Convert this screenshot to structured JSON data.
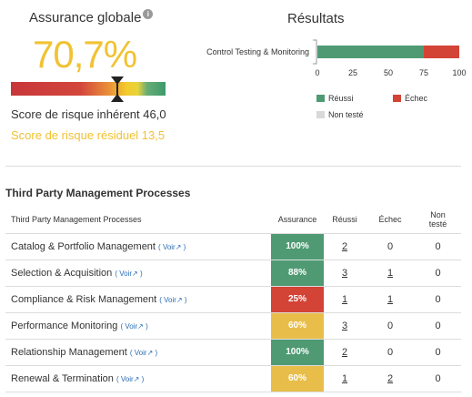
{
  "global": {
    "title": "Assurance globale",
    "info_icon": "i",
    "value": "70,7%",
    "value_color": "#f1c232",
    "gauge_position": 0.69,
    "inherent_label": "Score de risque inhérent 46,0",
    "residual_label": "Score de risque résiduel 13,5"
  },
  "results": {
    "title": "Résultats",
    "legend": [
      {
        "label": "Réussi",
        "color": "#4f9a73"
      },
      {
        "label": "Échec",
        "color": "#d34336"
      },
      {
        "label": "Non testé",
        "color": "#d9d9d9"
      }
    ]
  },
  "chart_data": {
    "type": "bar",
    "orientation": "horizontal",
    "stacked": true,
    "categories": [
      "Control Testing & Monitoring"
    ],
    "series": [
      {
        "name": "Réussi",
        "values": [
          75
        ],
        "color": "#4f9a73"
      },
      {
        "name": "Échec",
        "values": [
          25
        ],
        "color": "#d34336"
      },
      {
        "name": "Non testé",
        "values": [
          0
        ],
        "color": "#d9d9d9"
      }
    ],
    "xlim": [
      0,
      100
    ],
    "xticks": [
      "0",
      "25",
      "50",
      "75",
      "100"
    ],
    "grid": false,
    "legend_position": "bottom"
  },
  "table": {
    "title": "Third Party Management Processes",
    "headers": {
      "name": "Third Party Management Processes",
      "assurance": "Assurance",
      "passed": "Réussi",
      "failed": "Échec",
      "not_tested_1": "Non",
      "not_tested_2": "testé"
    },
    "voir_label": "Voir",
    "voir_icon": "↗",
    "rows": [
      {
        "name": "Catalog & Portfolio Management",
        "assurance": "100%",
        "color": "#4f9a73",
        "passed": "2",
        "failed": "0",
        "not_tested": "0"
      },
      {
        "name": "Selection & Acquisition",
        "assurance": "88%",
        "color": "#4f9a73",
        "passed": "3",
        "failed": "1",
        "not_tested": "0"
      },
      {
        "name": "Compliance & Risk Management",
        "assurance": "25%",
        "color": "#d34336",
        "passed": "1",
        "failed": "1",
        "not_tested": "0"
      },
      {
        "name": "Performance Monitoring",
        "assurance": "60%",
        "color": "#e8bd4a",
        "passed": "3",
        "failed": "0",
        "not_tested": "0"
      },
      {
        "name": "Relationship Management",
        "assurance": "100%",
        "color": "#4f9a73",
        "passed": "2",
        "failed": "0",
        "not_tested": "0"
      },
      {
        "name": "Renewal & Termination",
        "assurance": "60%",
        "color": "#e8bd4a",
        "passed": "1",
        "failed": "2",
        "not_tested": "0"
      }
    ]
  }
}
